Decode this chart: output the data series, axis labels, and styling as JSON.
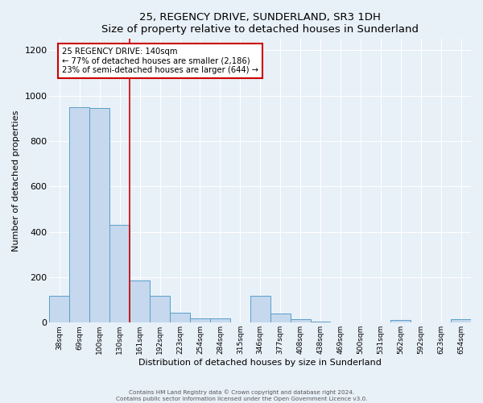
{
  "title": "25, REGENCY DRIVE, SUNDERLAND, SR3 1DH",
  "subtitle": "Size of property relative to detached houses in Sunderland",
  "xlabel": "Distribution of detached houses by size in Sunderland",
  "ylabel": "Number of detached properties",
  "bar_labels": [
    "38sqm",
    "69sqm",
    "100sqm",
    "130sqm",
    "161sqm",
    "192sqm",
    "223sqm",
    "254sqm",
    "284sqm",
    "315sqm",
    "346sqm",
    "377sqm",
    "408sqm",
    "438sqm",
    "469sqm",
    "500sqm",
    "531sqm",
    "562sqm",
    "592sqm",
    "623sqm",
    "654sqm"
  ],
  "bar_values": [
    120,
    950,
    945,
    430,
    185,
    120,
    45,
    18,
    18,
    0,
    120,
    40,
    15,
    5,
    0,
    0,
    0,
    10,
    0,
    0,
    15
  ],
  "bar_color": "#c5d8ed",
  "bar_edge_color": "#5a9ec9",
  "vline_x": 3.5,
  "vline_color": "#cc0000",
  "vline_label": "25 REGENCY DRIVE: 140sqm",
  "annotation_line1": "← 77% of detached houses are smaller (2,186)",
  "annotation_line2": "23% of semi-detached houses are larger (644) →",
  "annotation_box_edge": "#cc0000",
  "annotation_box_face": "white",
  "ylim": [
    0,
    1250
  ],
  "yticks": [
    0,
    200,
    400,
    600,
    800,
    1000,
    1200
  ],
  "footer_line1": "Contains HM Land Registry data © Crown copyright and database right 2024.",
  "footer_line2": "Contains public sector information licensed under the Open Government Licence v3.0.",
  "background_color": "#e8f0f8"
}
